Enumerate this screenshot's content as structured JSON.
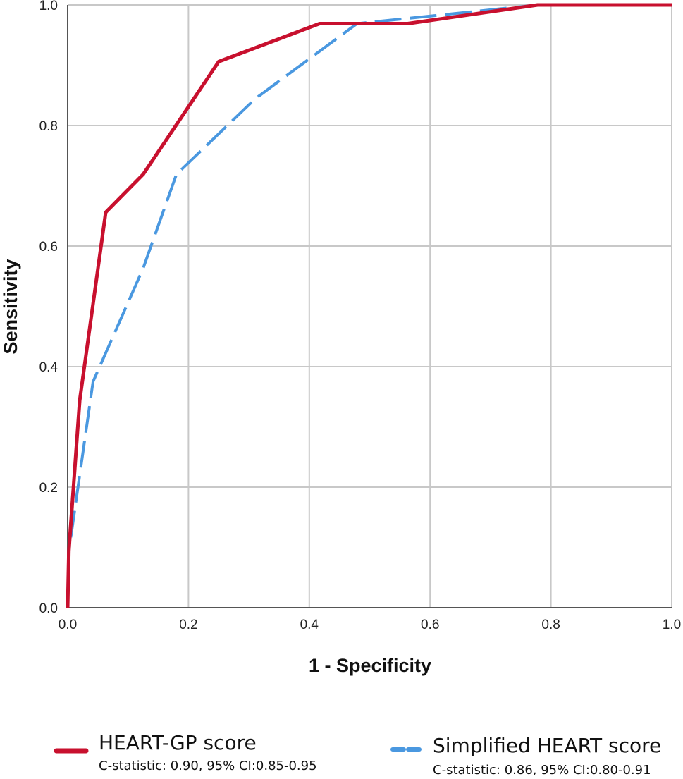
{
  "chart_data": {
    "type": "line",
    "xlabel": "1 - Specificity",
    "ylabel": "Sensitivity",
    "xlim": [
      0,
      1
    ],
    "ylim": [
      0,
      1
    ],
    "grid": true,
    "legend_position": "bottom",
    "x_ticks": [
      "0.0",
      "0.2",
      "0.4",
      "0.6",
      "0.8",
      "1.0"
    ],
    "y_ticks": [
      "0.0",
      "0.2",
      "0.4",
      "0.6",
      "0.8",
      "1.0"
    ],
    "series": [
      {
        "name": "HEART-GP score",
        "subtitle": "C-statistic: 0.90, 95% CI:0.85-0.95",
        "color": "#c8102e",
        "style": "solid",
        "x": [
          0.0,
          0.002,
          0.02,
          0.063,
          0.125,
          0.25,
          0.417,
          0.479,
          0.563,
          0.778,
          1.0
        ],
        "y": [
          0.0,
          0.094,
          0.344,
          0.656,
          0.719,
          0.906,
          0.969,
          0.969,
          0.969,
          1.0,
          1.0
        ]
      },
      {
        "name": "Simplified HEART score",
        "subtitle": "C-statistic: 0.86, 95% CI:0.80-0.91",
        "color": "#4a98e0",
        "style": "dashed",
        "x": [
          0.0,
          0.002,
          0.042,
          0.125,
          0.18,
          0.31,
          0.479,
          0.778,
          1.0
        ],
        "y": [
          0.0,
          0.094,
          0.375,
          0.563,
          0.719,
          0.844,
          0.969,
          1.0,
          1.0
        ]
      }
    ]
  }
}
